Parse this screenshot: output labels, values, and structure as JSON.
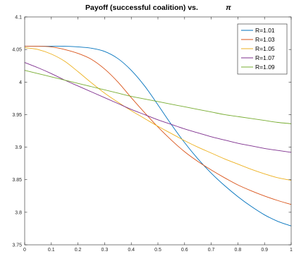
{
  "chart_data": {
    "type": "line",
    "title": "Payoff (successful coalition) vs.",
    "title_symbol": "π",
    "xlabel": "",
    "ylabel": "",
    "xlim": [
      0,
      1
    ],
    "ylim": [
      3.75,
      4.1
    ],
    "x_ticks": [
      0,
      0.1,
      0.2,
      0.3,
      0.4,
      0.5,
      0.6,
      0.7,
      0.8,
      0.9,
      1
    ],
    "x_tick_labels": [
      "0",
      "0.1",
      "0.2",
      "0.3",
      "0.4",
      "0.5",
      "0.6",
      "0.7",
      "0.8",
      "0.9",
      "1"
    ],
    "y_ticks": [
      3.75,
      3.8,
      3.85,
      3.9,
      3.95,
      4,
      4.05,
      4.1
    ],
    "y_tick_labels": [
      "3.75",
      "3.8",
      "3.85",
      "3.9",
      "3.95",
      "4",
      "4.05",
      "4.1"
    ],
    "grid": false,
    "legend_position": "top-right",
    "x": [
      0,
      0.05,
      0.1,
      0.15,
      0.2,
      0.25,
      0.3,
      0.35,
      0.4,
      0.45,
      0.5,
      0.55,
      0.6,
      0.65,
      0.7,
      0.75,
      0.8,
      0.85,
      0.9,
      0.95,
      1
    ],
    "series": [
      {
        "name": "R=1.01",
        "color": "#0072BD",
        "values": [
          4.055,
          4.055,
          4.055,
          4.055,
          4.054,
          4.052,
          4.047,
          4.036,
          4.018,
          3.994,
          3.965,
          3.935,
          3.907,
          3.882,
          3.86,
          3.841,
          3.824,
          3.809,
          3.796,
          3.786,
          3.779
        ]
      },
      {
        "name": "R=1.03",
        "color": "#D95319",
        "values": [
          4.055,
          4.055,
          4.054,
          4.05,
          4.044,
          4.035,
          4.02,
          4.0,
          3.976,
          3.953,
          3.931,
          3.911,
          3.893,
          3.878,
          3.865,
          3.853,
          3.842,
          3.833,
          3.825,
          3.818,
          3.812
        ]
      },
      {
        "name": "R=1.05",
        "color": "#EDB120",
        "values": [
          4.053,
          4.05,
          4.043,
          4.032,
          4.016,
          3.999,
          3.983,
          3.969,
          3.956,
          3.944,
          3.932,
          3.921,
          3.91,
          3.9,
          3.891,
          3.882,
          3.874,
          3.866,
          3.859,
          3.853,
          3.849
        ]
      },
      {
        "name": "R=1.07",
        "color": "#7E2F8E",
        "values": [
          4.03,
          4.022,
          4.013,
          4.003,
          3.994,
          3.985,
          3.976,
          3.967,
          3.958,
          3.95,
          3.942,
          3.935,
          3.928,
          3.922,
          3.916,
          3.911,
          3.906,
          3.902,
          3.898,
          3.895,
          3.892
        ]
      },
      {
        "name": "R=1.09",
        "color": "#77AC30",
        "values": [
          4.018,
          4.013,
          4.008,
          4.003,
          3.998,
          3.993,
          3.988,
          3.983,
          3.978,
          3.974,
          3.97,
          3.966,
          3.962,
          3.958,
          3.954,
          3.95,
          3.947,
          3.944,
          3.941,
          3.938,
          3.936
        ]
      }
    ]
  }
}
